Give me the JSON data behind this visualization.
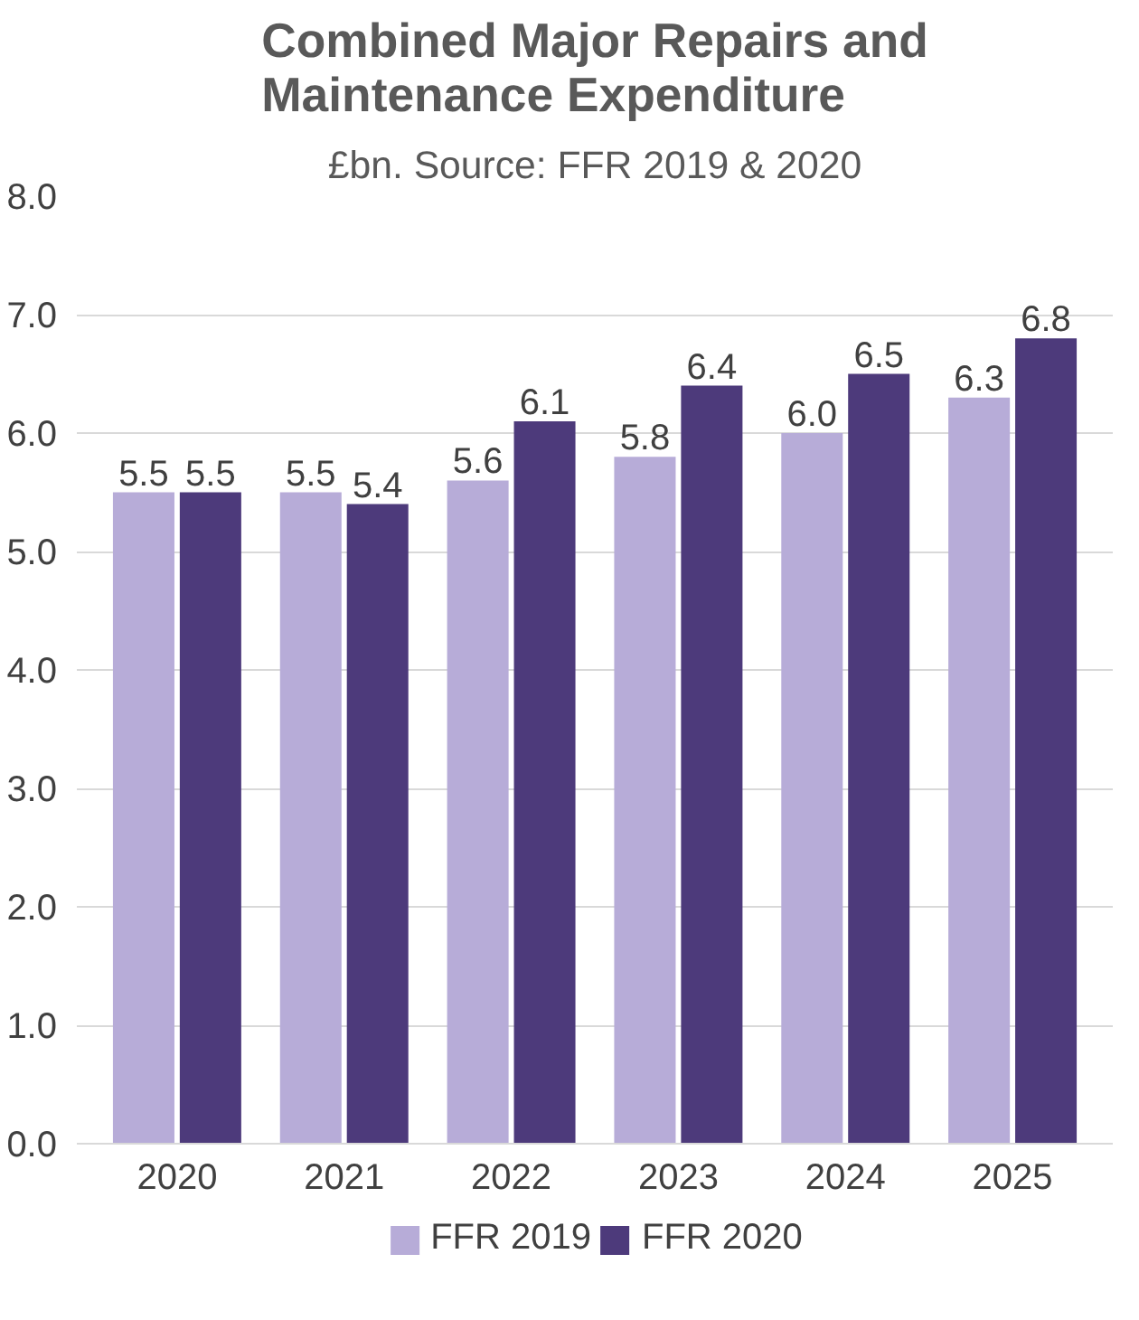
{
  "chart_data": {
    "type": "bar",
    "title": "Combined Major Repairs and Maintenance Expenditure",
    "subtitle": "£bn. Source: FFR 2019 & 2020",
    "categories": [
      "2020",
      "2021",
      "2022",
      "2023",
      "2024",
      "2025"
    ],
    "series": [
      {
        "name": "FFR 2019",
        "color": "#b7acd8",
        "values": [
          5.5,
          5.5,
          5.6,
          5.8,
          6.0,
          6.3
        ],
        "value_labels": [
          "5.5",
          "5.5",
          "5.6",
          "5.8",
          "6.0",
          "6.3"
        ]
      },
      {
        "name": "FFR 2020",
        "color": "#4d3a7b",
        "values": [
          5.5,
          5.4,
          6.1,
          6.4,
          6.5,
          6.8
        ],
        "value_labels": [
          "5.5",
          "5.4",
          "6.1",
          "6.4",
          "6.5",
          "6.8"
        ]
      }
    ],
    "ylim": [
      0,
      8
    ],
    "yticks": [
      {
        "value": 0,
        "label": "0.0"
      },
      {
        "value": 1,
        "label": "1.0"
      },
      {
        "value": 2,
        "label": "2.0"
      },
      {
        "value": 3,
        "label": "3.0"
      },
      {
        "value": 4,
        "label": "4.0"
      },
      {
        "value": 5,
        "label": "5.0"
      },
      {
        "value": 6,
        "label": "6.0"
      },
      {
        "value": 7,
        "label": "7.0"
      },
      {
        "value": 8,
        "label": "8.0"
      }
    ],
    "grid": "y",
    "legend": "bottom",
    "data_labels": true
  }
}
